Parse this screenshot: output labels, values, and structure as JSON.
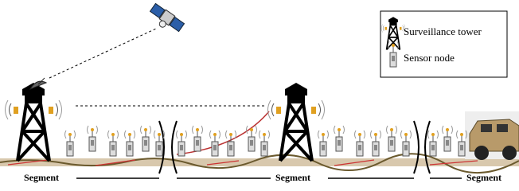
{
  "legend": {
    "items": [
      {
        "label": "Surveillance tower"
      },
      {
        "label": "Sensor node"
      }
    ]
  },
  "segments": [
    {
      "label": "Segment"
    },
    {
      "label": "Segment"
    },
    {
      "label": "Segment"
    }
  ]
}
